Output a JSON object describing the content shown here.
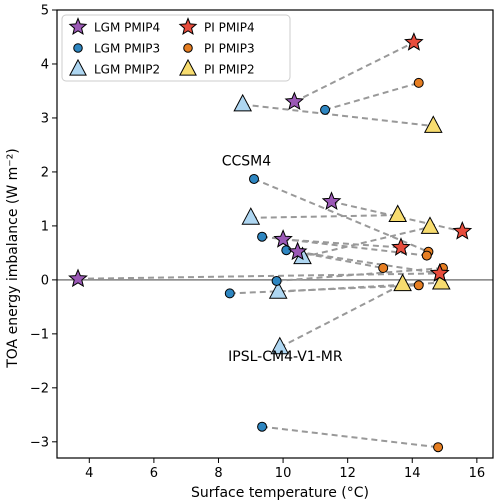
{
  "chart_data": {
    "type": "scatter",
    "xlabel": "Surface temperature (°C)",
    "ylabel": "TOA energy imbalance (W m⁻²)",
    "xlim": [
      3.0,
      16.5
    ],
    "ylim": [
      -3.3,
      5.0
    ],
    "xticks": [
      4,
      6,
      8,
      10,
      12,
      14,
      16
    ],
    "yticks": [
      -3,
      -2,
      -1,
      0,
      1,
      2,
      3,
      4,
      5
    ],
    "xtick_labels": [
      "4",
      "6",
      "8",
      "10",
      "12",
      "14",
      "16"
    ],
    "ytick_labels": [
      "−3",
      "−2",
      "−1",
      "0",
      "1",
      "2",
      "3",
      "4",
      "5"
    ],
    "reference_line_y": 0,
    "legend_position": "top-left",
    "colors": {
      "pmip4_lgm": "#9b59b6",
      "pmip4_pi": "#e74c3c",
      "pmip3_lgm": "#2e86c1",
      "pmip3_pi": "#e67e22",
      "pmip2_lgm": "#aed6f1",
      "pmip2_pi": "#f7dc6f",
      "connector": "#999999",
      "zero_line": "#808080"
    },
    "legend": [
      {
        "label": "LGM PMIP4",
        "marker": "star",
        "color": "#9b59b6"
      },
      {
        "label": "PI PMIP4",
        "marker": "star",
        "color": "#e74c3c"
      },
      {
        "label": "LGM PMIP3",
        "marker": "circle",
        "color": "#2e86c1"
      },
      {
        "label": "PI PMIP3",
        "marker": "circle",
        "color": "#e67e22"
      },
      {
        "label": "LGM PMIP2",
        "marker": "triangle",
        "color": "#aed6f1"
      },
      {
        "label": "PI PMIP2",
        "marker": "triangle",
        "color": "#f7dc6f"
      }
    ],
    "pairs": [
      {
        "group": "PMIP4",
        "lgm": [
          10.35,
          3.3
        ],
        "pi": [
          14.05,
          4.4
        ]
      },
      {
        "group": "PMIP4",
        "lgm": [
          11.5,
          1.45
        ],
        "pi": [
          15.55,
          0.9
        ]
      },
      {
        "group": "PMIP4",
        "lgm": [
          10.0,
          0.75
        ],
        "pi": [
          13.65,
          0.6
        ]
      },
      {
        "group": "PMIP4",
        "lgm": [
          10.45,
          0.52
        ],
        "pi": [
          14.85,
          0.12
        ]
      },
      {
        "group": "PMIP4",
        "lgm": [
          3.65,
          0.02
        ],
        "pi": [
          14.85,
          0.12
        ]
      },
      {
        "group": "PMIP3",
        "lgm": [
          11.3,
          3.15
        ],
        "pi": [
          14.2,
          3.65
        ]
      },
      {
        "group": "PMIP3",
        "lgm": [
          9.1,
          1.87
        ],
        "pi": [
          14.5,
          0.52
        ]
      },
      {
        "group": "PMIP3",
        "lgm": [
          9.35,
          0.8
        ],
        "pi": [
          14.45,
          0.45
        ]
      },
      {
        "group": "PMIP3",
        "lgm": [
          10.1,
          0.55
        ],
        "pi": [
          13.1,
          0.22
        ]
      },
      {
        "group": "PMIP3",
        "lgm": [
          9.8,
          -0.02
        ],
        "pi": [
          14.95,
          0.22
        ]
      },
      {
        "group": "PMIP3",
        "lgm": [
          8.35,
          -0.25
        ],
        "pi": [
          14.2,
          -0.1
        ]
      },
      {
        "group": "PMIP3",
        "lgm": [
          9.35,
          -2.72
        ],
        "pi": [
          14.8,
          -3.1
        ]
      },
      {
        "group": "PMIP2",
        "lgm": [
          8.75,
          3.25
        ],
        "pi": [
          14.65,
          2.85
        ]
      },
      {
        "group": "PMIP2",
        "lgm": [
          9.0,
          1.15
        ],
        "pi": [
          13.55,
          1.2
        ]
      },
      {
        "group": "PMIP2",
        "lgm": [
          10.6,
          0.42
        ],
        "pi": [
          14.55,
          0.98
        ]
      },
      {
        "group": "PMIP2",
        "lgm": [
          9.85,
          -0.22
        ],
        "pi": [
          14.9,
          -0.05
        ]
      },
      {
        "group": "PMIP2",
        "lgm": [
          9.9,
          -1.25
        ],
        "pi": [
          13.7,
          -0.08
        ]
      }
    ],
    "annotations": [
      {
        "text": "CCSM4",
        "x": 8.1,
        "y": 2.12
      },
      {
        "text": "IPSL-CM4-V1-MR",
        "x": 8.3,
        "y": -1.5
      }
    ]
  }
}
